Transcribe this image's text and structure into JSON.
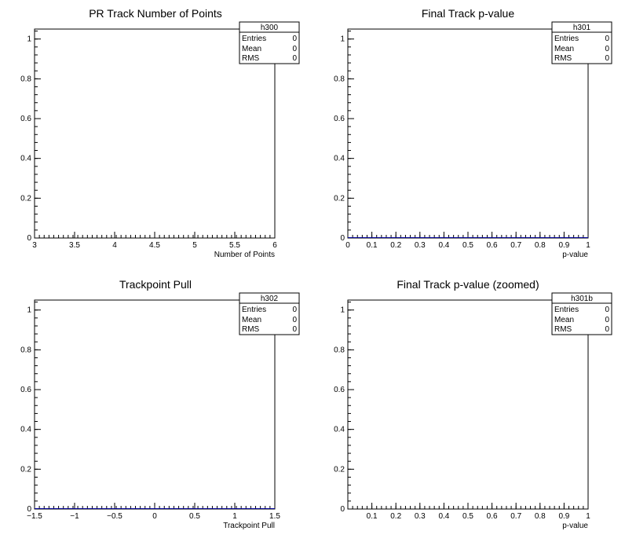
{
  "chart_data": [
    {
      "type": "histogram",
      "title": "PR Track Number of Points",
      "xlabel": "Number of Points",
      "ylabel": "",
      "xlim": [
        3,
        6
      ],
      "ylim": [
        0,
        1.05
      ],
      "x_ticks": [
        "3",
        "3.5",
        "4",
        "4.5",
        "5",
        "5.5",
        "6"
      ],
      "y_ticks": [
        "0",
        "0.2",
        "0.4",
        "0.6",
        "0.8",
        "1"
      ],
      "values": [],
      "stats": {
        "name": "h300",
        "rows": [
          {
            "label": "Entries",
            "value": "0"
          },
          {
            "label": "Mean",
            "value": "0"
          },
          {
            "label": "RMS",
            "value": "0"
          }
        ]
      }
    },
    {
      "type": "histogram",
      "title": "Final Track p-value",
      "xlabel": "p-value",
      "ylabel": "",
      "xlim": [
        0,
        1
      ],
      "ylim": [
        0,
        1.05
      ],
      "x_ticks": [
        "0",
        "0.1",
        "0.2",
        "0.3",
        "0.4",
        "0.5",
        "0.6",
        "0.7",
        "0.8",
        "0.9",
        "1"
      ],
      "y_ticks": [
        "0",
        "0.2",
        "0.4",
        "0.6",
        "0.8",
        "1"
      ],
      "values": [
        0,
        0,
        0,
        0,
        0,
        0,
        0,
        0,
        0,
        0,
        0,
        0,
        0,
        0,
        0,
        0,
        0,
        0,
        0,
        0,
        0,
        0,
        0,
        0,
        0,
        0,
        0,
        0,
        0,
        0,
        0,
        0,
        0,
        0,
        0,
        0,
        0,
        0,
        0,
        0,
        0,
        0,
        0,
        0,
        0,
        0,
        0,
        0,
        0,
        0
      ],
      "stats": {
        "name": "h301",
        "rows": [
          {
            "label": "Entries",
            "value": "0"
          },
          {
            "label": "Mean",
            "value": "0"
          },
          {
            "label": "RMS",
            "value": "0"
          }
        ]
      }
    },
    {
      "type": "histogram",
      "title": "Trackpoint Pull",
      "xlabel": "Trackpoint Pull",
      "ylabel": "",
      "xlim": [
        -1.5,
        1.5
      ],
      "ylim": [
        0,
        1.05
      ],
      "x_ticks": [
        "−1.5",
        "−1",
        "−0.5",
        "0",
        "0.5",
        "1",
        "1.5"
      ],
      "y_ticks": [
        "0",
        "0.2",
        "0.4",
        "0.6",
        "0.8",
        "1"
      ],
      "values": [
        0,
        0,
        0,
        0,
        0,
        0,
        0,
        0,
        0,
        0,
        0,
        0,
        0,
        0,
        0,
        0,
        0,
        0,
        0,
        0,
        0,
        0,
        0,
        0,
        0,
        0,
        0,
        0,
        0,
        0,
        0,
        0,
        0,
        0,
        0,
        0,
        0,
        0,
        0,
        0,
        0,
        0,
        0,
        0,
        0,
        0,
        0,
        0,
        0,
        0
      ],
      "stats": {
        "name": "h302",
        "rows": [
          {
            "label": "Entries",
            "value": "0"
          },
          {
            "label": "Mean",
            "value": "0"
          },
          {
            "label": "RMS",
            "value": "0"
          }
        ]
      }
    },
    {
      "type": "histogram",
      "title": "Final Track p-value (zoomed)",
      "xlabel": "p-value",
      "ylabel": "",
      "xlim": [
        0,
        1
      ],
      "ylim": [
        0,
        1.05
      ],
      "x_ticks": [
        "0.1",
        "0.2",
        "0.3",
        "0.4",
        "0.5",
        "0.6",
        "0.7",
        "0.8",
        "0.9",
        "1"
      ],
      "y_ticks": [
        "0",
        "0.2",
        "0.4",
        "0.6",
        "0.8",
        "1"
      ],
      "values": [],
      "stats": {
        "name": "h301b",
        "rows": [
          {
            "label": "Entries",
            "value": "0"
          },
          {
            "label": "Mean",
            "value": "0"
          },
          {
            "label": "RMS",
            "value": "0"
          }
        ]
      }
    }
  ]
}
